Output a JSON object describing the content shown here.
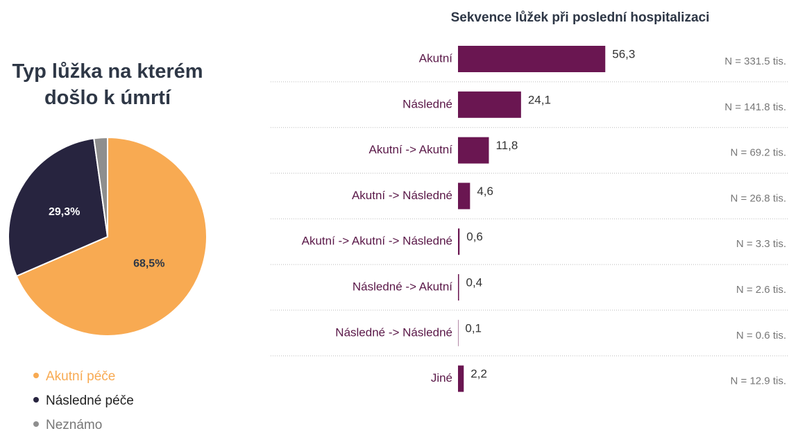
{
  "chart_data": [
    {
      "type": "pie",
      "title": "Typ lůžka na kterém došlo k úmrtí",
      "categories": [
        "Akutní péče",
        "Následné péče",
        "Neznámo"
      ],
      "values": [
        68.5,
        29.3,
        2.2
      ],
      "value_labels": [
        "68,5%",
        "29,3%",
        null
      ],
      "colors": [
        "#f8aa52",
        "#27243f",
        "#8e8e8e"
      ]
    },
    {
      "type": "bar",
      "orientation": "horizontal",
      "title": "Sekvence lůžek při poslední hospitalizaci",
      "categories": [
        "Akutní",
        "Následné",
        "Akutní -> Akutní",
        "Akutní -> Následné",
        "Akutní -> Akutní -> Následné",
        "Následné -> Akutní",
        "Následné -> Následné",
        "Jiné"
      ],
      "values": [
        56.3,
        24.1,
        11.8,
        4.6,
        0.6,
        0.4,
        0.1,
        2.2
      ],
      "value_labels": [
        "56,3",
        "24,1",
        "11,8",
        "4,6",
        "0,6",
        "0,4",
        "0,1",
        "2,2"
      ],
      "annotations": [
        "N = 331.5 tis.",
        "N = 141.8 tis.",
        "N = 69.2 tis.",
        "N = 26.8 tis.",
        "N = 3.3 tis.",
        "N = 2.6 tis.",
        "N = 0.6 tis.",
        "N = 12.9 tis."
      ],
      "color": "#6a1651"
    }
  ]
}
